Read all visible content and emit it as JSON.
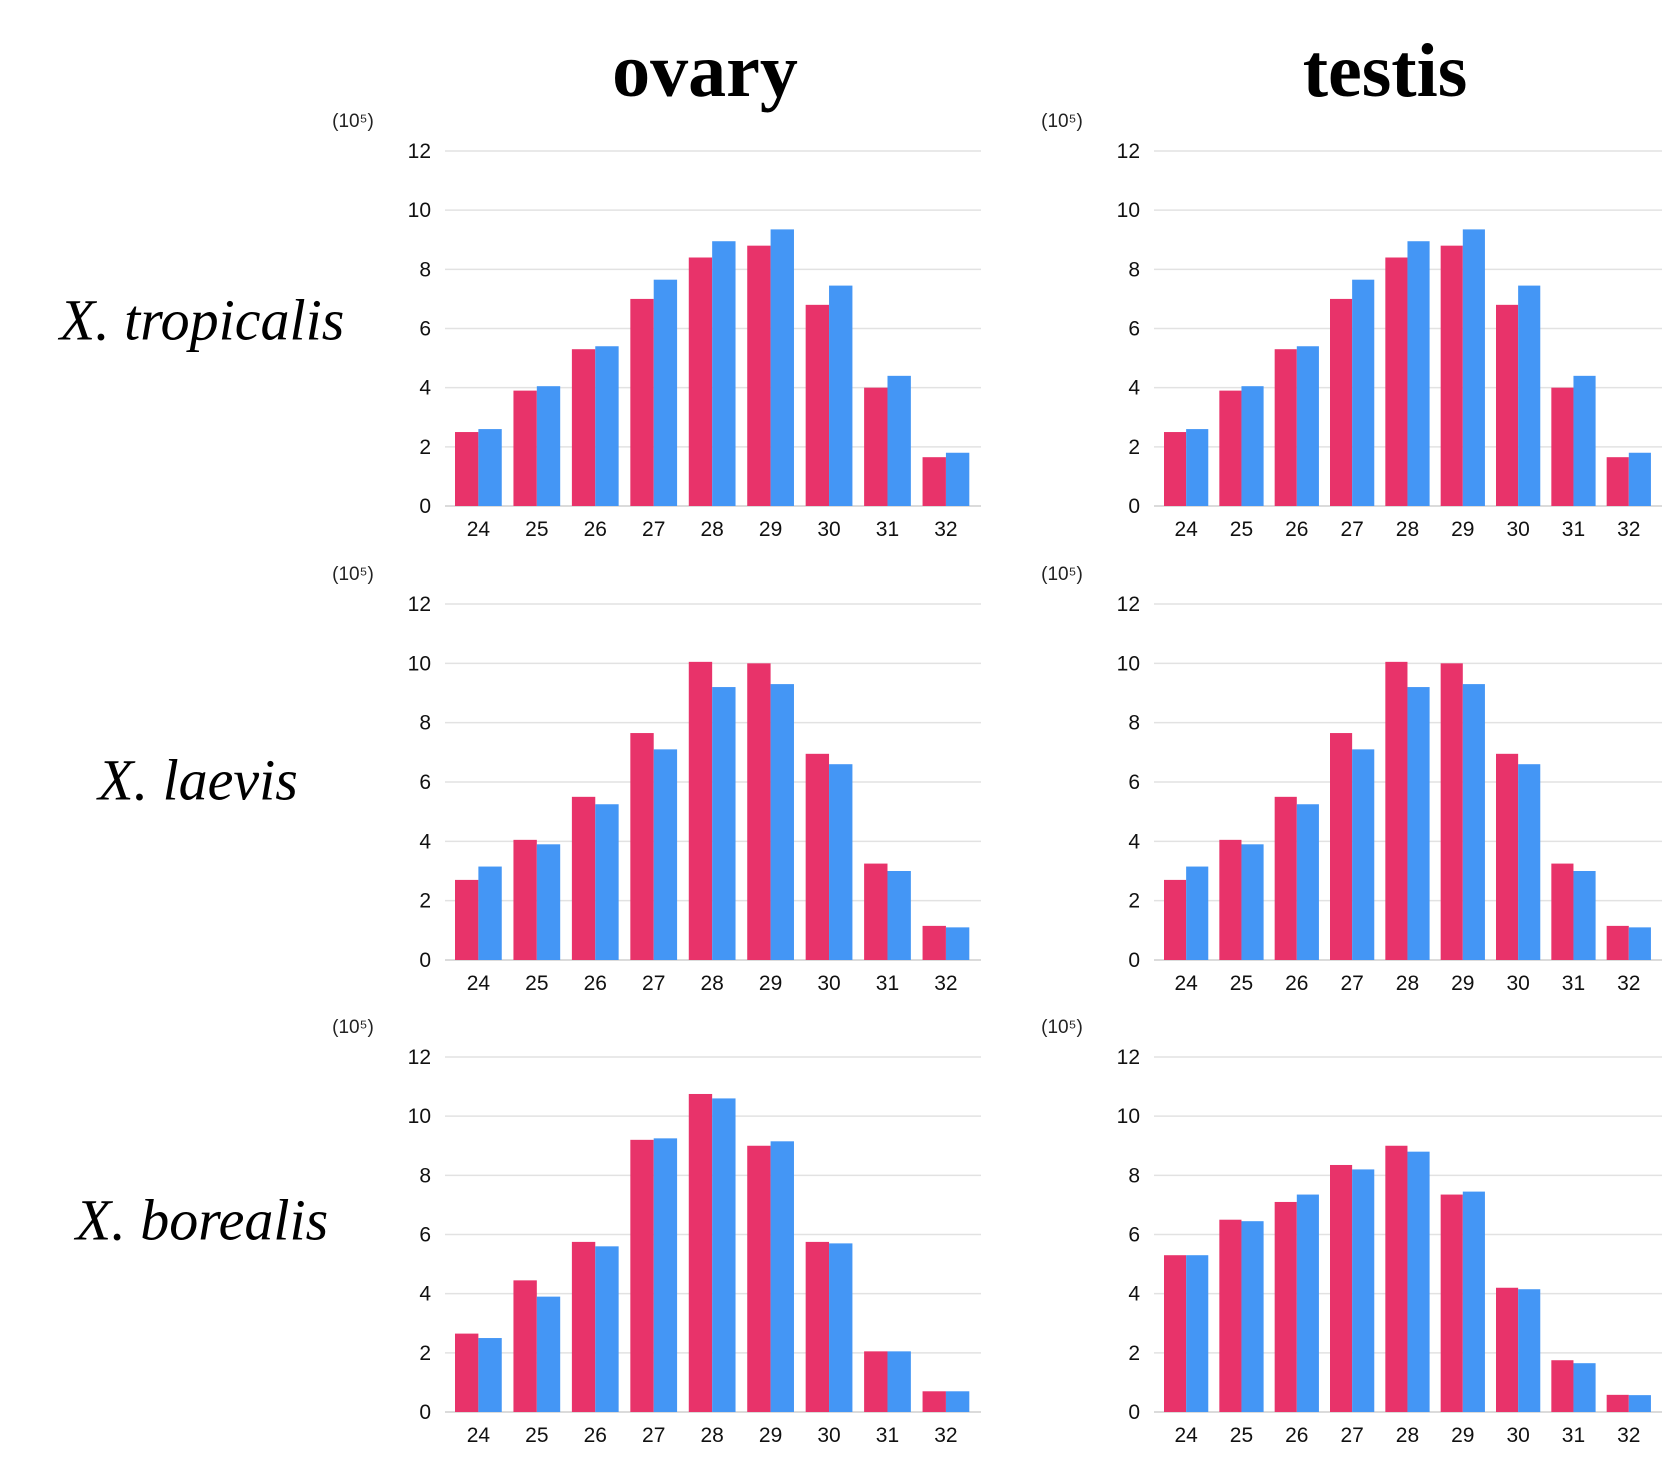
{
  "column_titles": [
    "ovary",
    "testis"
  ],
  "row_labels": [
    "X. tropicalis",
    "X. laevis",
    "X. borealis"
  ],
  "colors": {
    "series_1": "#e8336a",
    "series_2": "#4496f5",
    "grid": "#e2e2e2"
  },
  "chart_data": [
    {
      "type": "bar",
      "panel": "X. tropicalis / ovary",
      "unit_label": "(10⁵)",
      "ylim": [
        0,
        12
      ],
      "yticks": [
        0,
        2,
        4,
        6,
        8,
        10,
        12
      ],
      "grid": true,
      "categories": [
        "24",
        "25",
        "26",
        "27",
        "28",
        "29",
        "30",
        "31",
        "32"
      ],
      "series": [
        {
          "values": [
            2.5,
            3.9,
            5.3,
            7.0,
            8.4,
            8.8,
            6.8,
            4.0,
            1.65
          ]
        },
        {
          "values": [
            2.6,
            4.05,
            5.4,
            7.65,
            8.95,
            9.35,
            7.45,
            4.4,
            1.8
          ]
        }
      ]
    },
    {
      "type": "bar",
      "panel": "X. tropicalis / testis",
      "unit_label": "(10⁵)",
      "ylim": [
        0,
        12
      ],
      "yticks": [
        0,
        2,
        4,
        6,
        8,
        10,
        12
      ],
      "grid": true,
      "categories": [
        "24",
        "25",
        "26",
        "27",
        "28",
        "29",
        "30",
        "31",
        "32"
      ],
      "series": [
        {
          "values": [
            2.5,
            3.9,
            5.3,
            7.0,
            8.4,
            8.8,
            6.8,
            4.0,
            1.65
          ]
        },
        {
          "values": [
            2.6,
            4.05,
            5.4,
            7.65,
            8.95,
            9.35,
            7.45,
            4.4,
            1.8
          ]
        }
      ]
    },
    {
      "type": "bar",
      "panel": "X. laevis / ovary",
      "unit_label": "(10⁵)",
      "ylim": [
        0,
        12
      ],
      "yticks": [
        0,
        2,
        4,
        6,
        8,
        10,
        12
      ],
      "grid": true,
      "categories": [
        "24",
        "25",
        "26",
        "27",
        "28",
        "29",
        "30",
        "31",
        "32"
      ],
      "series": [
        {
          "values": [
            2.7,
            4.05,
            5.5,
            7.65,
            10.05,
            10.0,
            6.95,
            3.25,
            1.15
          ]
        },
        {
          "values": [
            3.15,
            3.9,
            5.25,
            7.1,
            9.2,
            9.3,
            6.6,
            3.0,
            1.1
          ]
        }
      ]
    },
    {
      "type": "bar",
      "panel": "X. laevis / testis",
      "unit_label": "(10⁵)",
      "ylim": [
        0,
        12
      ],
      "yticks": [
        0,
        2,
        4,
        6,
        8,
        10,
        12
      ],
      "grid": true,
      "categories": [
        "24",
        "25",
        "26",
        "27",
        "28",
        "29",
        "30",
        "31",
        "32"
      ],
      "series": [
        {
          "values": [
            2.7,
            4.05,
            5.5,
            7.65,
            10.05,
            10.0,
            6.95,
            3.25,
            1.15
          ]
        },
        {
          "values": [
            3.15,
            3.9,
            5.25,
            7.1,
            9.2,
            9.3,
            6.6,
            3.0,
            1.1
          ]
        }
      ]
    },
    {
      "type": "bar",
      "panel": "X. borealis / ovary",
      "unit_label": "(10⁵)",
      "ylim": [
        0,
        12
      ],
      "yticks": [
        0,
        2,
        4,
        6,
        8,
        10,
        12
      ],
      "grid": true,
      "categories": [
        "24",
        "25",
        "26",
        "27",
        "28",
        "29",
        "30",
        "31",
        "32"
      ],
      "series": [
        {
          "values": [
            2.65,
            4.45,
            5.75,
            9.2,
            10.75,
            9.0,
            5.75,
            2.05,
            0.7
          ]
        },
        {
          "values": [
            2.5,
            3.9,
            5.6,
            9.25,
            10.6,
            9.15,
            5.7,
            2.05,
            0.7
          ]
        }
      ]
    },
    {
      "type": "bar",
      "panel": "X. borealis / testis",
      "unit_label": "(10⁵)",
      "ylim": [
        0,
        12
      ],
      "yticks": [
        0,
        2,
        4,
        6,
        8,
        10,
        12
      ],
      "grid": true,
      "categories": [
        "24",
        "25",
        "26",
        "27",
        "28",
        "29",
        "30",
        "31",
        "32"
      ],
      "series": [
        {
          "values": [
            5.3,
            6.5,
            7.1,
            8.35,
            9.0,
            7.35,
            4.2,
            1.75,
            0.58
          ]
        },
        {
          "values": [
            5.3,
            6.45,
            7.35,
            8.2,
            8.8,
            7.45,
            4.15,
            1.65,
            0.57
          ]
        }
      ]
    }
  ]
}
